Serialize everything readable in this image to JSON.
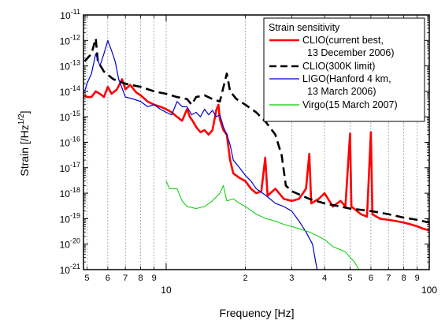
{
  "chart_data": {
    "type": "line",
    "xlabel": "Frequency [Hz]",
    "ylabel_base": "Strain [/Hz",
    "ylabel_exp": "1/2",
    "ylabel_tail": "]",
    "xscale": "log",
    "yscale": "log",
    "xlim": [
      4.85,
      100
    ],
    "ylim": [
      1e-21,
      1e-11
    ],
    "grid": true,
    "x_major_ticks": [
      {
        "value": 10,
        "label": "10"
      },
      {
        "value": 100,
        "label": "100"
      }
    ],
    "x_minor_ticks": [
      {
        "value": 5,
        "label": "5"
      },
      {
        "value": 6,
        "label": "6"
      },
      {
        "value": 7,
        "label": "7"
      },
      {
        "value": 8,
        "label": "8"
      },
      {
        "value": 9,
        "label": "9"
      },
      {
        "value": 20,
        "label": "2"
      },
      {
        "value": 30,
        "label": "3"
      },
      {
        "value": 40,
        "label": "4"
      },
      {
        "value": 50,
        "label": "5"
      },
      {
        "value": 60,
        "label": "6"
      },
      {
        "value": 70,
        "label": "7"
      },
      {
        "value": 80,
        "label": "8"
      },
      {
        "value": 90,
        "label": "9"
      }
    ],
    "y_ticks": [
      {
        "exp": -11,
        "base": "10",
        "sup": "-11"
      },
      {
        "exp": -12,
        "base": "10",
        "sup": "-12"
      },
      {
        "exp": -13,
        "base": "10",
        "sup": "-13"
      },
      {
        "exp": -14,
        "base": "10",
        "sup": "-14"
      },
      {
        "exp": -15,
        "base": "10",
        "sup": "-15"
      },
      {
        "exp": -16,
        "base": "10",
        "sup": "-16"
      },
      {
        "exp": -17,
        "base": "10",
        "sup": "-17"
      },
      {
        "exp": -18,
        "base": "10",
        "sup": "-18"
      },
      {
        "exp": -19,
        "base": "10",
        "sup": "-19"
      },
      {
        "exp": -20,
        "base": "10",
        "sup": "-20"
      },
      {
        "exp": -21,
        "base": "10",
        "sup": "-21"
      }
    ],
    "legend": {
      "title": "Strain sensitivity",
      "position": "top-right",
      "entries": [
        {
          "series": 0,
          "lines": [
            "CLIO(current best,",
            "13 December 2006)"
          ]
        },
        {
          "series": 1,
          "lines": [
            "CLIO(300K limit)"
          ]
        },
        {
          "series": 2,
          "lines": [
            "LIGO(Hanford 4 km,",
            "13 March 2006)"
          ]
        },
        {
          "series": 3,
          "lines": [
            "Virgo(15 March 2007)"
          ]
        }
      ]
    },
    "series": [
      {
        "name": "CLIO(current best, 13 December 2006)",
        "color": "#ff0000",
        "width": 2.6,
        "dash": "",
        "points": [
          [
            4.9,
            7e-15
          ],
          [
            5.0,
            6e-15
          ],
          [
            5.2,
            6e-15
          ],
          [
            5.4,
            1e-14
          ],
          [
            5.6,
            8e-15
          ],
          [
            5.8,
            6e-15
          ],
          [
            6.0,
            1.5e-14
          ],
          [
            6.2,
            8e-15
          ],
          [
            6.5,
            1.2e-14
          ],
          [
            6.8,
            3e-14
          ],
          [
            7.0,
            1.2e-14
          ],
          [
            7.3,
            1.8e-14
          ],
          [
            7.7,
            9e-15
          ],
          [
            8.0,
            7e-15
          ],
          [
            8.5,
            4e-15
          ],
          [
            9.0,
            3e-15
          ],
          [
            9.5,
            2.5e-15
          ],
          [
            10.0,
            2e-15
          ],
          [
            10.5,
            1.5e-15
          ],
          [
            11.0,
            1e-15
          ],
          [
            11.5,
            7e-16
          ],
          [
            12.0,
            2e-15
          ],
          [
            12.3,
            1e-15
          ],
          [
            12.6,
            7e-16
          ],
          [
            13.0,
            4e-16
          ],
          [
            13.5,
            2.5e-16
          ],
          [
            14.0,
            3e-16
          ],
          [
            14.5,
            2e-16
          ],
          [
            15.0,
            3e-16
          ],
          [
            15.5,
            1.8e-15
          ],
          [
            15.8,
            3e-15
          ],
          [
            16.0,
            8e-16
          ],
          [
            16.5,
            3e-16
          ],
          [
            17.0,
            2e-16
          ],
          [
            17.5,
            2e-17
          ],
          [
            18.0,
            6e-18
          ],
          [
            19.0,
            4e-18
          ],
          [
            20.0,
            3e-18
          ],
          [
            21.0,
            1.5e-18
          ],
          [
            22.0,
            1e-18
          ],
          [
            23.0,
            1.2e-18
          ],
          [
            23.8,
            2.5e-17
          ],
          [
            24.3,
            8e-19
          ],
          [
            26.0,
            1.5e-18
          ],
          [
            28.0,
            6e-19
          ],
          [
            30.0,
            5e-19
          ],
          [
            32.0,
            6e-19
          ],
          [
            34.0,
            1.5e-18
          ],
          [
            35.0,
            3.5e-17
          ],
          [
            35.6,
            4e-19
          ],
          [
            38.0,
            6e-19
          ],
          [
            40.0,
            1e-18
          ],
          [
            43.0,
            3e-19
          ],
          [
            46.0,
            5e-19
          ],
          [
            48.0,
            3e-19
          ],
          [
            50.0,
            2.2e-16
          ],
          [
            50.6,
            3e-19
          ],
          [
            55.0,
            1.5e-19
          ],
          [
            58.0,
            1.2e-19
          ],
          [
            60.0,
            2.5e-16
          ],
          [
            60.8,
            1.5e-19
          ],
          [
            65.0,
            1e-19
          ],
          [
            70.0,
            9e-20
          ],
          [
            75.0,
            8e-20
          ],
          [
            80.0,
            7e-20
          ],
          [
            85.0,
            6e-20
          ],
          [
            90.0,
            5e-20
          ],
          [
            95.0,
            4e-20
          ],
          [
            100.0,
            3.5e-20
          ]
        ]
      },
      {
        "name": "CLIO(300K limit)",
        "color": "#000000",
        "width": 2.6,
        "dash": "11 6",
        "points": [
          [
            4.9,
            1.5e-13
          ],
          [
            5.2,
            3e-13
          ],
          [
            5.4,
            1.2e-12
          ],
          [
            5.5,
            1.5e-13
          ],
          [
            5.8,
            6e-14
          ],
          [
            6.3,
            3e-14
          ],
          [
            7.0,
            2e-14
          ],
          [
            8.0,
            1.5e-14
          ],
          [
            9.0,
            1e-14
          ],
          [
            10.0,
            8e-15
          ],
          [
            11.0,
            6e-15
          ],
          [
            12.0,
            5e-15
          ],
          [
            12.5,
            3e-15
          ],
          [
            13.0,
            6e-15
          ],
          [
            14.0,
            7e-15
          ],
          [
            15.0,
            5e-15
          ],
          [
            16.0,
            4e-15
          ],
          [
            17.0,
            5e-14
          ],
          [
            17.5,
            1e-14
          ],
          [
            18.5,
            5e-15
          ],
          [
            20.0,
            3e-15
          ],
          [
            22.0,
            1.5e-15
          ],
          [
            24.0,
            6e-16
          ],
          [
            26.0,
            2e-16
          ],
          [
            27.5,
            3e-17
          ],
          [
            28.5,
            2e-18
          ],
          [
            30.0,
            1.2e-18
          ],
          [
            35.0,
            6e-19
          ],
          [
            40.0,
            4e-19
          ],
          [
            50.0,
            2.5e-19
          ],
          [
            60.0,
            2e-19
          ],
          [
            70.0,
            1.5e-19
          ],
          [
            80.0,
            1.1e-19
          ],
          [
            90.0,
            9e-20
          ],
          [
            100.0,
            7e-20
          ]
        ]
      },
      {
        "name": "LIGO(Hanford 4 km, 13 March 2006)",
        "color": "#0000cc",
        "width": 1.2,
        "dash": "",
        "points": [
          [
            4.9,
            1e-14
          ],
          [
            5.0,
            2e-14
          ],
          [
            5.2,
            5e-14
          ],
          [
            5.4,
            3e-13
          ],
          [
            5.6,
            1e-13
          ],
          [
            5.8,
            3e-13
          ],
          [
            6.0,
            1e-12
          ],
          [
            6.2,
            4e-13
          ],
          [
            6.4,
            1.5e-13
          ],
          [
            6.6,
            3e-14
          ],
          [
            7.0,
            6e-15
          ],
          [
            7.5,
            5e-15
          ],
          [
            8.0,
            4e-15
          ],
          [
            8.5,
            2.5e-15
          ],
          [
            9.0,
            3e-15
          ],
          [
            9.5,
            2e-15
          ],
          [
            10.0,
            1.5e-15
          ],
          [
            10.5,
            1.2e-15
          ],
          [
            11.0,
            4e-15
          ],
          [
            11.5,
            2.5e-15
          ],
          [
            12.0,
            2.5e-15
          ],
          [
            12.5,
            1.2e-15
          ],
          [
            13.0,
            1.5e-15
          ],
          [
            13.5,
            1e-15
          ],
          [
            14.0,
            2e-15
          ],
          [
            14.5,
            1.2e-15
          ],
          [
            15.0,
            1.8e-15
          ],
          [
            15.5,
            1e-15
          ],
          [
            16.0,
            1.2e-15
          ],
          [
            16.5,
            4e-16
          ],
          [
            17.0,
            2e-16
          ],
          [
            17.5,
            8e-17
          ],
          [
            18.0,
            2e-17
          ],
          [
            19.0,
            1e-17
          ],
          [
            20.0,
            5e-18
          ],
          [
            21.0,
            3e-18
          ],
          [
            22.0,
            1.5e-18
          ],
          [
            24.0,
            8e-19
          ],
          [
            26.0,
            4e-19
          ],
          [
            28.0,
            3e-19
          ],
          [
            30.0,
            2e-19
          ],
          [
            32.0,
            8e-20
          ],
          [
            34.0,
            3e-20
          ],
          [
            36.0,
            1e-20
          ],
          [
            37.0,
            2e-21
          ],
          [
            37.5,
            1e-21
          ]
        ]
      },
      {
        "name": "Virgo(15 March 2007)",
        "color": "#00cc00",
        "width": 1.0,
        "dash": "",
        "points": [
          [
            10.0,
            3e-18
          ],
          [
            10.3,
            1.5e-18
          ],
          [
            11.0,
            1.5e-18
          ],
          [
            11.5,
            5e-19
          ],
          [
            12.0,
            3e-19
          ],
          [
            13.0,
            2.5e-19
          ],
          [
            14.0,
            3e-19
          ],
          [
            15.0,
            5e-19
          ],
          [
            16.0,
            1e-18
          ],
          [
            16.5,
            2e-18
          ],
          [
            17.0,
            5e-19
          ],
          [
            18.0,
            6e-19
          ],
          [
            19.0,
            4e-19
          ],
          [
            20.0,
            3e-19
          ],
          [
            22.0,
            1.5e-19
          ],
          [
            24.0,
            1e-19
          ],
          [
            26.0,
            8e-20
          ],
          [
            28.0,
            6e-20
          ],
          [
            30.0,
            5e-20
          ],
          [
            32.0,
            4e-20
          ],
          [
            35.0,
            3e-20
          ],
          [
            38.0,
            2e-20
          ],
          [
            40.0,
            1.5e-20
          ],
          [
            43.0,
            8e-21
          ],
          [
            46.0,
            6e-21
          ],
          [
            48.0,
            5e-21
          ],
          [
            50.0,
            3e-21
          ],
          [
            52.0,
            2e-21
          ],
          [
            54.0,
            1e-21
          ]
        ]
      }
    ]
  }
}
